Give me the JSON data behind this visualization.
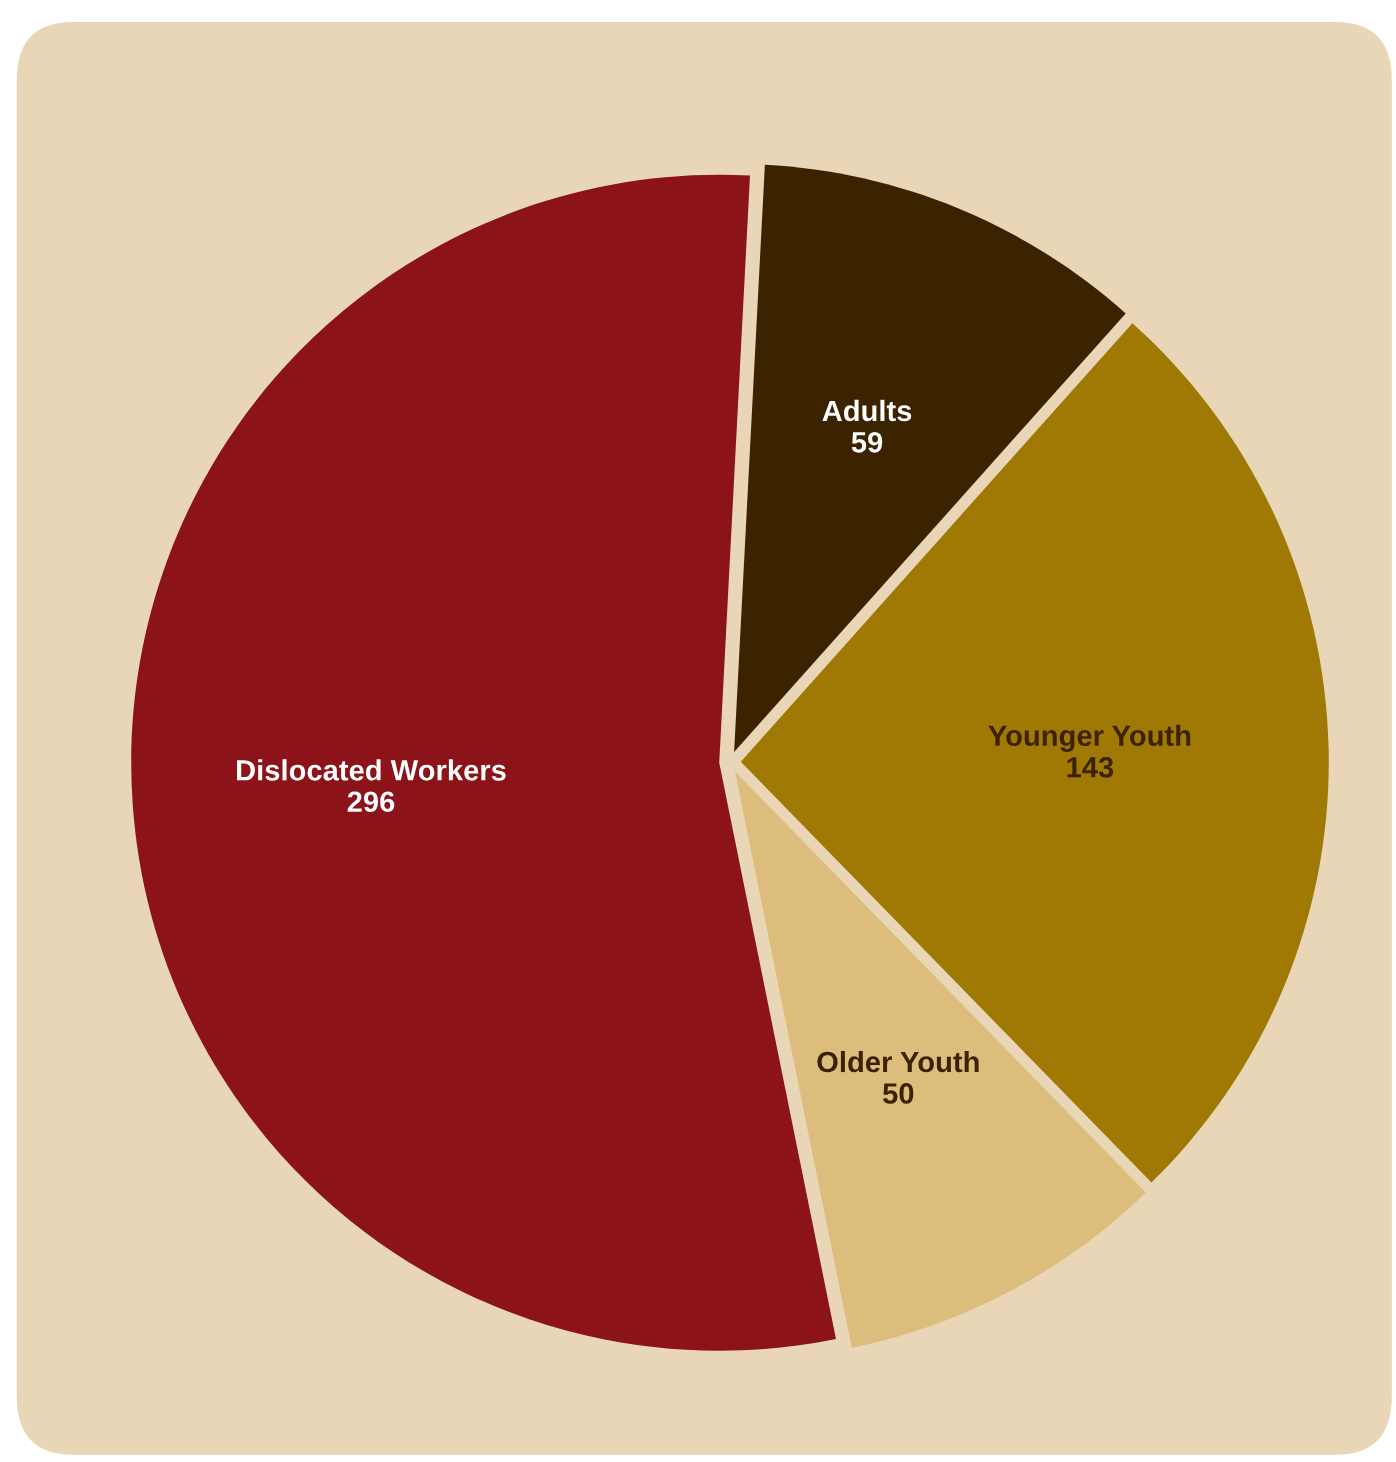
{
  "chart_data": {
    "type": "pie",
    "categories": [
      "Adults",
      "Younger Youth",
      "Older Youth",
      "Dislocated Workers"
    ],
    "values": [
      59,
      143,
      50,
      296
    ],
    "colors": [
      "#3b2300",
      "#a07905",
      "#dcbd7b",
      "#8b1319"
    ],
    "data_labels": true,
    "legend": false
  }
}
